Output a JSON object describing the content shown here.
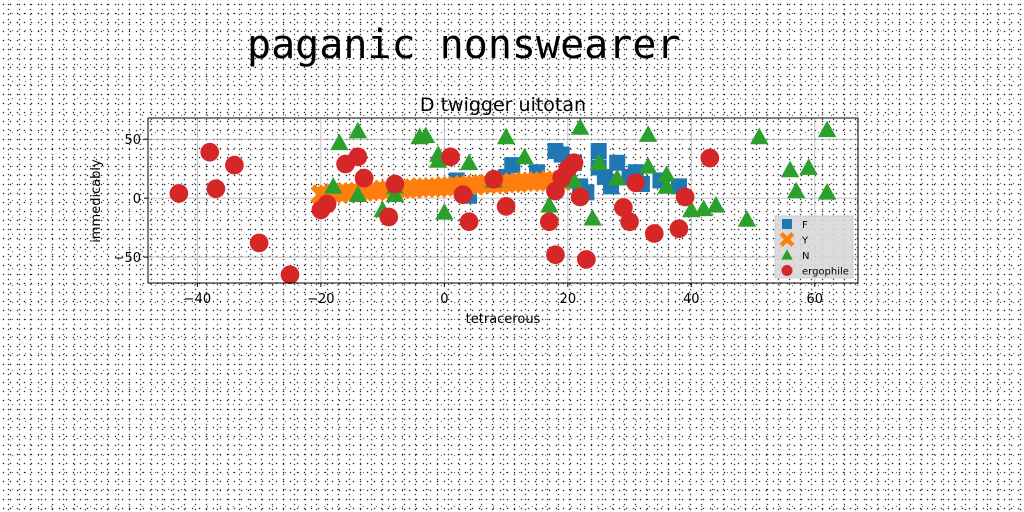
{
  "page_title": "paganic nonswearer",
  "chart_data": {
    "type": "scatter",
    "title": "D twigger uitotan",
    "xlabel": "tetracerous",
    "ylabel": "immedicably",
    "xlim": [
      -48,
      67
    ],
    "ylim": [
      -72,
      68
    ],
    "xticks": [
      -40,
      -20,
      0,
      20,
      40,
      60
    ],
    "yticks": [
      -50,
      0,
      50
    ],
    "grid": true,
    "legend_position": "lower-right",
    "series": [
      {
        "name": "F",
        "marker": "square",
        "color": "#1f77b4",
        "x": [
          2,
          3,
          4,
          7,
          10,
          11,
          15,
          18,
          19,
          20,
          21,
          22,
          23,
          25,
          25,
          26,
          27,
          28,
          30,
          31,
          32,
          35,
          38
        ],
        "y": [
          15,
          5,
          2,
          12,
          18,
          28,
          22,
          40,
          37,
          15,
          30,
          10,
          5,
          40,
          26,
          18,
          10,
          30,
          18,
          22,
          12,
          15,
          10
        ]
      },
      {
        "name": "Y",
        "marker": "x",
        "color": "#ff7f0e",
        "x": [
          -20,
          -19,
          -18,
          -17,
          -16,
          -15,
          -14,
          -13,
          -12,
          -11,
          -10,
          -9,
          -8,
          -7,
          -6,
          -5,
          -4,
          -3,
          -2,
          -1,
          0,
          1,
          2,
          3,
          4,
          5,
          6,
          7,
          8,
          9,
          10,
          11,
          12,
          13,
          14,
          15,
          16,
          17,
          18,
          19
        ],
        "y": [
          3,
          3,
          4,
          4,
          5,
          5,
          5,
          6,
          6,
          6,
          7,
          7,
          7,
          8,
          8,
          8,
          9,
          9,
          9,
          9,
          10,
          10,
          10,
          11,
          11,
          11,
          12,
          12,
          12,
          12,
          13,
          13,
          13,
          14,
          14,
          14,
          14,
          15,
          15,
          15
        ]
      },
      {
        "name": "N",
        "marker": "triangle",
        "color": "#2ca02c",
        "x": [
          -18,
          -17,
          -14,
          -14,
          -10,
          -8,
          -8,
          -4,
          -3,
          -1,
          -1,
          0,
          4,
          8,
          10,
          13,
          17,
          21,
          22,
          24,
          25,
          28,
          33,
          33,
          36,
          36,
          40,
          42,
          44,
          49,
          51,
          56,
          57,
          59,
          62,
          62
        ],
        "y": [
          10,
          47,
          57,
          3,
          -10,
          3,
          10,
          52,
          53,
          32,
          37,
          -12,
          30,
          15,
          52,
          35,
          -6,
          15,
          60,
          -17,
          30,
          17,
          54,
          27,
          20,
          10,
          -10,
          -9,
          -6,
          -18,
          52,
          24,
          6,
          26,
          5,
          58
        ],
        "_note_": ""
      },
      {
        "name": "ergophile",
        "marker": "circle",
        "color": "#d62728",
        "x": [
          -43,
          -38,
          -37,
          -34,
          -30,
          -25,
          -20,
          -19,
          -16,
          -14,
          -13,
          -9,
          -8,
          1,
          3,
          4,
          8,
          10,
          17,
          18,
          18,
          19,
          20,
          21,
          22,
          23,
          29,
          30,
          31,
          34,
          38,
          39,
          43
        ],
        "y": [
          4,
          39,
          8,
          28,
          -38,
          -65,
          -10,
          -5,
          29,
          35,
          17,
          -16,
          12,
          35,
          3,
          -20,
          16,
          -7,
          -20,
          -48,
          6,
          17,
          25,
          30,
          1,
          -52,
          -8,
          -20,
          13,
          -30,
          -26,
          1,
          34
        ]
      }
    ]
  }
}
